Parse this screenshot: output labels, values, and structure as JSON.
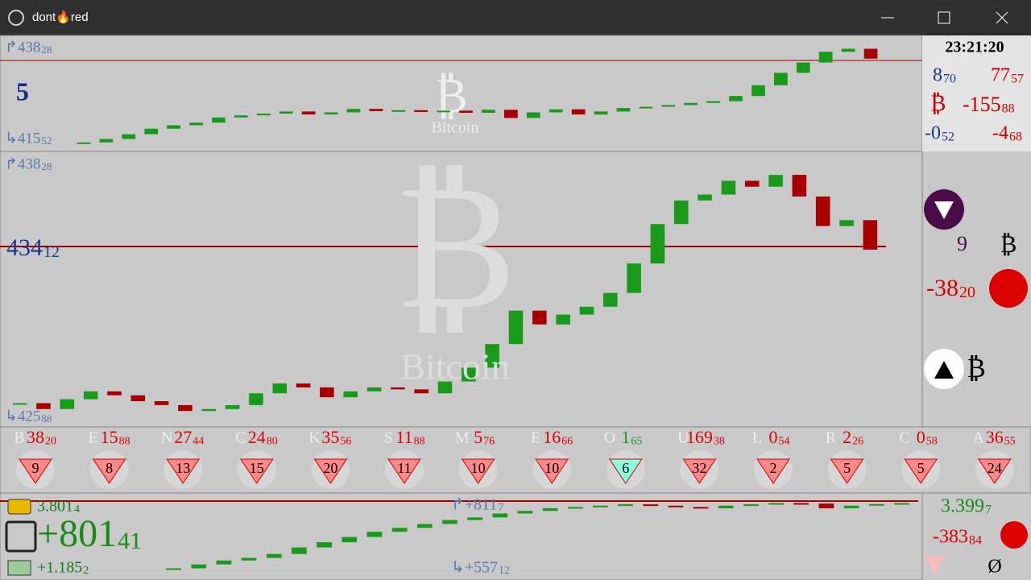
{
  "window": {
    "title": "dont🔥red"
  },
  "top_panel": {
    "high": {
      "main": "↱438",
      "frac": "28"
    },
    "low": {
      "main": "↳415",
      "frac": "52"
    },
    "level": "5",
    "watermark": "Bitcoin",
    "ylim": [
      415,
      439
    ],
    "closes": [
      415.6,
      416.4,
      417.5,
      418.8,
      419.6,
      420.2,
      421.4,
      421.9,
      422.3,
      422.8,
      422.1,
      422.6,
      423.4,
      422.9,
      423.1,
      422.7,
      423.0,
      422.5,
      423.2,
      421.3,
      422.6,
      423.3,
      422.1,
      422.8,
      423.6,
      423.9,
      424.3,
      424.8,
      425.2,
      426.4,
      428.9,
      431.8,
      434.2,
      436.7,
      437.4,
      435.1
    ]
  },
  "top_stats": {
    "time": "23:21:20",
    "a": {
      "main": "8",
      "frac": "70"
    },
    "b": {
      "main": "77",
      "frac": "57"
    },
    "c": {
      "main": "-155",
      "frac": "88"
    },
    "d": {
      "main": "-0",
      "frac": "52"
    },
    "e": {
      "main": "-4",
      "frac": "68"
    }
  },
  "main_panel": {
    "high": {
      "main": "↱438",
      "frac": "28"
    },
    "price": {
      "main": "434",
      "frac": "12"
    },
    "low": {
      "main": "↳425",
      "frac": "88"
    },
    "watermark": "Bitcoin",
    "ylim": [
      425.5,
      438.6
    ],
    "closes": [
      426.3,
      426.0,
      426.5,
      426.9,
      426.7,
      426.4,
      426.2,
      425.9,
      426.0,
      426.2,
      426.8,
      427.3,
      427.1,
      426.6,
      426.9,
      427.1,
      427.0,
      426.8,
      427.4,
      428.1,
      429.3,
      431.0,
      430.3,
      430.8,
      431.2,
      431.9,
      433.4,
      435.4,
      436.6,
      436.9,
      437.6,
      437.3,
      437.9,
      436.8,
      435.3,
      435.6,
      434.1
    ]
  },
  "side": {
    "count": "9",
    "change": {
      "main": "-38",
      "frac": "20"
    }
  },
  "strip": [
    {
      "letter": "B",
      "main": "38",
      "frac": "20",
      "count": "9"
    },
    {
      "letter": "E",
      "main": "15",
      "frac": "88",
      "count": "8"
    },
    {
      "letter": "N",
      "main": "27",
      "frac": "44",
      "count": "13"
    },
    {
      "letter": "C",
      "main": "24",
      "frac": "80",
      "count": "15"
    },
    {
      "letter": "K",
      "main": "35",
      "frac": "56",
      "count": "20"
    },
    {
      "letter": "S",
      "main": "11",
      "frac": "88",
      "count": "11"
    },
    {
      "letter": "M",
      "main": "5",
      "frac": "76",
      "count": "10"
    },
    {
      "letter": "E",
      "main": "16",
      "frac": "66",
      "count": "10"
    },
    {
      "letter": "O",
      "main": "1",
      "frac": "65",
      "count": "6"
    },
    {
      "letter": "U",
      "main": "169",
      "frac": "38",
      "count": "32"
    },
    {
      "letter": "Ł",
      "main": "0",
      "frac": "54",
      "count": "2"
    },
    {
      "letter": "R",
      "main": "2",
      "frac": "26",
      "count": "5"
    },
    {
      "letter": "C",
      "main": "0",
      "frac": "58",
      "count": "5"
    },
    {
      "letter": "A",
      "main": "36",
      "frac": "55",
      "count": "24"
    }
  ],
  "bottom": {
    "balance": {
      "main": "3.801",
      "frac": "4"
    },
    "profit": {
      "main": "+801",
      "frac": "41"
    },
    "cash": {
      "main": "+1.185",
      "frac": "2"
    },
    "high": {
      "main": "↱+811",
      "frac": "7"
    },
    "low": {
      "main": "↳+557",
      "frac": "12"
    },
    "right_value": {
      "main": "3.399",
      "frac": "7"
    },
    "right_change": {
      "main": "-383",
      "frac": "84"
    },
    "symbol": "Ø",
    "ylim": [
      540,
      830
    ],
    "closes": [
      560,
      575,
      590,
      600,
      615,
      640,
      660,
      680,
      700,
      715,
      730,
      745,
      755,
      770,
      780,
      790,
      795,
      800,
      805,
      800,
      795,
      790,
      800,
      805,
      810,
      808,
      790,
      800,
      806,
      810
    ]
  }
}
